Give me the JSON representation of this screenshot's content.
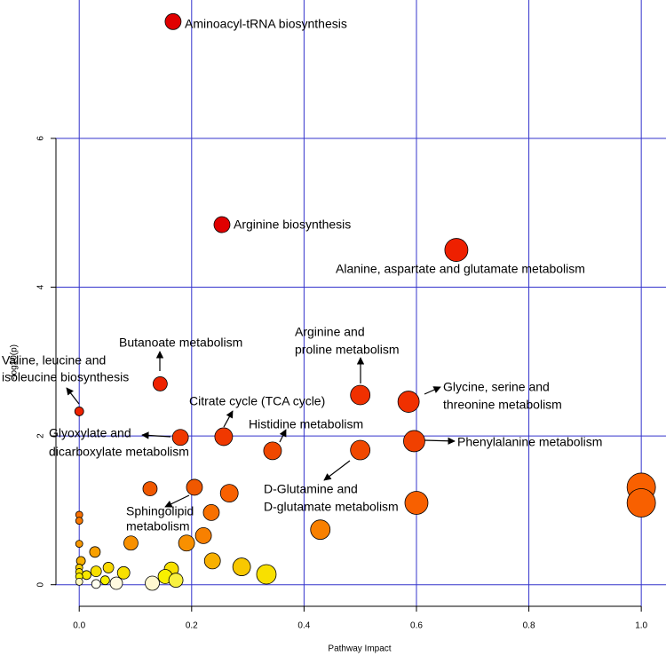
{
  "chart_data": {
    "type": "scatter",
    "x_label": "Pathway Impact",
    "y_label": "-log10(p)",
    "xlim": [
      -0.043,
      1.044
    ],
    "ylim": [
      -0.29,
      7.86
    ],
    "xticks": [
      {
        "value": 0,
        "label": "0.0"
      },
      0.2,
      0.4,
      0.6,
      0.8,
      {
        "value": 1,
        "label": "1.0"
      }
    ],
    "yticks": [
      0,
      2,
      4,
      6
    ],
    "grid": true,
    "grid_color": "#3333cc",
    "x": [
      0.167,
      0.254,
      0.671,
      0.144,
      0,
      0.5,
      0.586,
      0.257,
      0.18,
      0.344,
      0.596,
      0.5,
      1.0,
      1.0,
      0.6,
      0.126,
      0.205,
      0.267,
      0.235,
      0.429,
      0.221,
      0.191,
      0.092,
      0.237,
      0.289,
      0.333,
      0.164,
      0.153,
      0.172,
      0.13,
      0.066,
      0.028,
      0,
      0,
      0,
      0.003,
      0.052,
      0.079,
      0.03,
      0.013,
      0,
      0,
      0,
      0,
      0.03,
      0.046
    ],
    "y": [
      7.57,
      4.84,
      4.5,
      2.7,
      2.33,
      2.55,
      2.46,
      1.99,
      1.98,
      1.8,
      1.93,
      1.81,
      1.31,
      1.1,
      1.1,
      1.29,
      1.31,
      1.23,
      0.97,
      0.74,
      0.66,
      0.56,
      0.56,
      0.32,
      0.24,
      0.14,
      0.21,
      0.11,
      0.06,
      0.02,
      0.02,
      0.44,
      0.94,
      0.86,
      0.55,
      0.32,
      0.23,
      0.16,
      0.18,
      0.13,
      0.23,
      0.17,
      0.11,
      0.04,
      0.01,
      0.06
    ],
    "sizes": [
      9,
      9,
      13,
      8,
      5,
      11,
      12,
      10,
      9,
      10,
      12,
      11,
      16,
      16,
      13,
      8,
      9,
      10,
      9,
      11,
      9,
      9,
      8,
      9,
      10,
      11,
      8,
      8,
      8,
      8,
      7,
      6,
      4,
      4,
      4,
      5,
      6,
      7,
      6,
      5,
      4,
      4,
      4,
      4,
      5,
      5
    ],
    "colors": [
      "#e00000",
      "#e00000",
      "#ee2000",
      "#ee2200",
      "#ee2200",
      "#f03000",
      "#f03000",
      "#f03800",
      "#f03800",
      "#f04800",
      "#f04000",
      "#f04800",
      "#f86000",
      "#f86000",
      "#f86000",
      "#f05800",
      "#f05800",
      "#f86000",
      "#f87000",
      "#f88000",
      "#f88000",
      "#f89000",
      "#f89000",
      "#f8b000",
      "#f8c800",
      "#f8e000",
      "#f8e000",
      "#f8f000",
      "#f8f040",
      "#fff8d0",
      "#fffae0",
      "#f8a000",
      "#f87000",
      "#f87800",
      "#f89800",
      "#f8b000",
      "#f8d800",
      "#f8e000",
      "#f8e000",
      "#f8e800",
      "#f8d000",
      "#f8e000",
      "#f8f000",
      "#fff8c0",
      "#fffff0",
      "#f8f000"
    ],
    "annotations": [
      [
        "Aminoacyl-tRNA biosynthesis"
      ],
      [
        "Arginine biosynthesis"
      ],
      [
        "Alanine, aspartate and glutamate metabolism"
      ],
      [
        "Butanoate metabolism"
      ],
      [
        "Valine, leucine and",
        "isoleucine biosynthesis"
      ],
      [
        "Arginine and",
        "proline metabolism"
      ],
      [
        "Glycine, serine and",
        "threonine metabolism"
      ],
      [
        "Citrate cycle (TCA cycle)"
      ],
      [
        "Histidine metabolism"
      ],
      [
        "Glyoxylate and",
        "dicarboxylate metabolism"
      ],
      [
        "Phenylalanine metabolism"
      ],
      [
        "D-Glutamine and",
        "D-glutamate metabolism"
      ],
      [
        "Sphingolipid",
        "metabolism"
      ]
    ]
  }
}
